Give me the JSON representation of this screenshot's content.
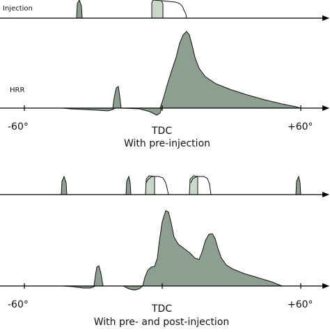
{
  "colors": {
    "fill": "#8e9e91",
    "fill_light": "#c9d8c9",
    "stroke": "#111111",
    "axis": "#000000"
  },
  "panels": [
    {
      "id": "top",
      "injection_label": "Injection",
      "hrr_label": "HRR",
      "ticks": [
        "-60°",
        "TDC",
        "+60°"
      ],
      "caption": "With pre-injection"
    },
    {
      "id": "bottom",
      "ticks": [
        "-60°",
        "TDC",
        "+60°"
      ],
      "caption": "With pre- and post-injection"
    }
  ]
}
